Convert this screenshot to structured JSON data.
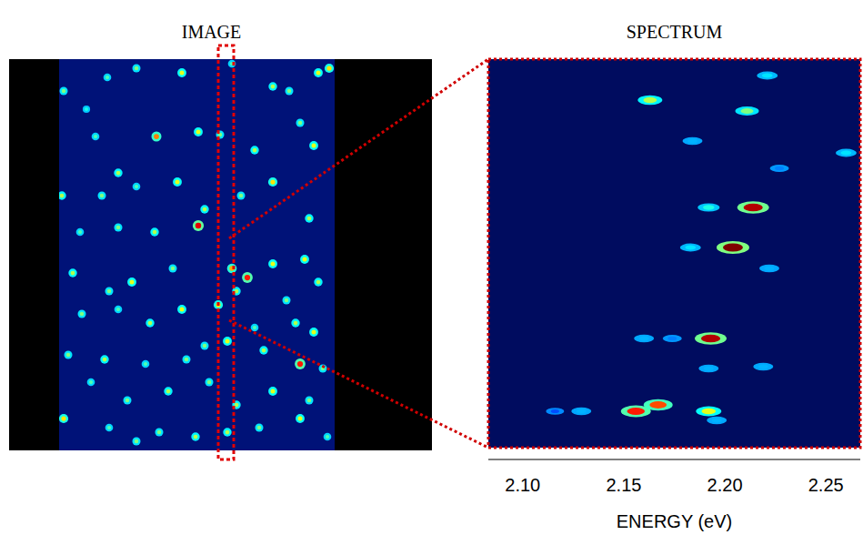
{
  "chart_data": [
    {
      "type": "image",
      "title": "IMAGE",
      "xlim": [
        0,
        303
      ],
      "ylim": [
        0,
        430
      ],
      "tick_labels": false,
      "x": [
        5,
        30,
        53,
        85,
        135,
        190,
        235,
        253,
        285,
        297,
        40,
        65,
        107,
        153,
        177,
        215,
        265,
        280,
        3,
        47,
        85,
        130,
        160,
        200,
        235,
        275,
        23,
        65,
        105,
        153,
        190,
        207,
        235,
        270,
        15,
        55,
        80,
        125,
        175,
        195,
        250,
        285,
        25,
        65,
        100,
        135,
        160,
        215,
        260,
        280,
        10,
        50,
        95,
        140,
        185,
        225,
        265,
        290,
        35,
        75,
        120,
        165,
        195,
        235,
        275,
        5,
        55,
        110,
        150,
        220,
        265,
        295,
        85,
        185
      ],
      "y": [
        35,
        55,
        20,
        10,
        15,
        5,
        30,
        35,
        15,
        10,
        85,
        125,
        85,
        80,
        83,
        100,
        70,
        95,
        150,
        150,
        140,
        135,
        165,
        150,
        135,
        175,
        190,
        185,
        190,
        183,
        230,
        240,
        225,
        220,
        235,
        255,
        245,
        230,
        270,
        255,
        265,
        245,
        280,
        275,
        290,
        275,
        315,
        295,
        290,
        300,
        325,
        330,
        335,
        330,
        310,
        320,
        335,
        340,
        355,
        375,
        365,
        355,
        380,
        365,
        375,
        395,
        405,
        410,
        415,
        405,
        395,
        415,
        420,
        410
      ],
      "intensity": [
        0.5,
        0.4,
        0.45,
        0.5,
        0.6,
        0.45,
        0.55,
        0.5,
        0.6,
        0.65,
        0.45,
        0.55,
        0.75,
        0.6,
        0.5,
        0.55,
        0.5,
        0.6,
        0.55,
        0.5,
        0.45,
        0.6,
        0.55,
        0.5,
        0.65,
        0.55,
        0.45,
        0.5,
        0.55,
        0.9,
        0.7,
        0.85,
        0.6,
        0.6,
        0.55,
        0.5,
        0.6,
        0.5,
        0.65,
        0.55,
        0.5,
        0.55,
        0.5,
        0.45,
        0.55,
        0.6,
        0.5,
        0.45,
        0.55,
        0.6,
        0.5,
        0.55,
        0.45,
        0.5,
        0.6,
        0.55,
        0.85,
        0.5,
        0.45,
        0.5,
        0.55,
        0.5,
        0.55,
        0.6,
        0.5,
        0.65,
        0.45,
        0.5,
        0.55,
        0.5,
        0.6,
        0.45,
        0.5,
        0.55
      ]
    },
    {
      "type": "scatter",
      "title": "SPECTRUM",
      "xlabel": "ENERGY (eV)",
      "xlim": [
        2.083,
        2.267
      ],
      "ylim": [
        0,
        427
      ],
      "tick_labels": "x",
      "xticks": [
        {
          "value": 2.1,
          "label": "2.10"
        },
        2.15,
        {
          "value": 2.2,
          "label": "2.20"
        },
        2.25
      ],
      "x": [
        2.163,
        2.211,
        2.221,
        2.184,
        2.26,
        2.227,
        2.192,
        2.214,
        2.204,
        2.183,
        2.222,
        2.193,
        2.16,
        2.174,
        2.192,
        2.219,
        2.156,
        2.167,
        2.192,
        2.129,
        2.196,
        2.116
      ],
      "y": [
        45,
        57,
        18,
        90,
        103,
        120,
        163,
        163,
        207,
        207,
        230,
        307,
        307,
        307,
        340,
        338,
        387,
        380,
        387,
        387,
        397,
        387
      ],
      "intensity": [
        0.55,
        0.5,
        0.35,
        0.3,
        0.35,
        0.25,
        0.4,
        0.95,
        1.0,
        0.35,
        0.3,
        0.95,
        0.3,
        0.25,
        0.3,
        0.3,
        0.85,
        0.8,
        0.6,
        0.3,
        0.3,
        0.2
      ]
    }
  ]
}
